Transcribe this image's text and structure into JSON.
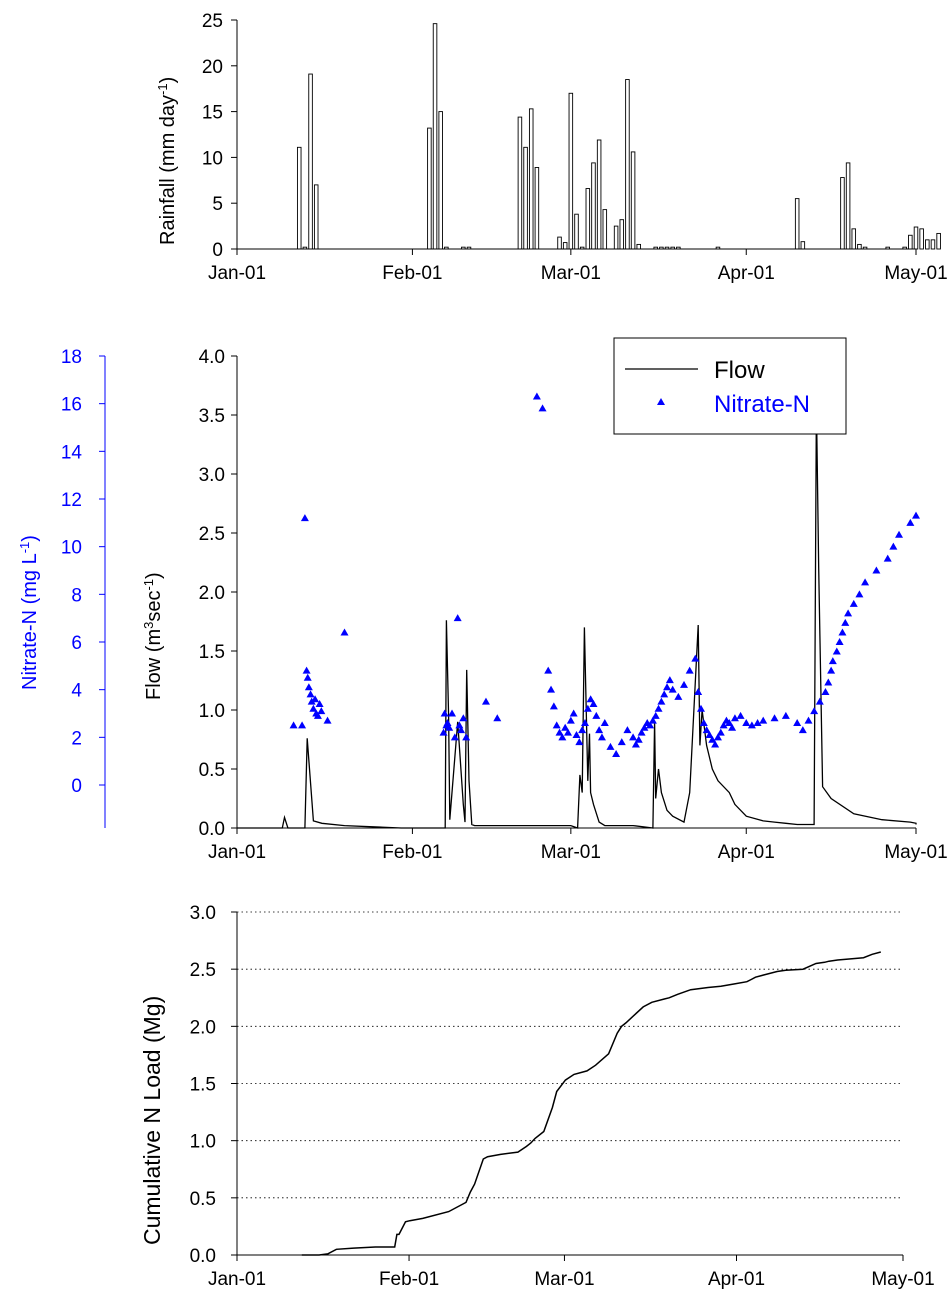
{
  "colors": {
    "black": "#000000",
    "blue": "#0000ff",
    "gray_bar_fill": "#ffffff",
    "grid": "#000000"
  },
  "chart_data": [
    {
      "type": "bar",
      "ylabel": "Rainfall (mm day",
      "ylabel_sup": "-1",
      "ylabel_close": ")",
      "ylim": [
        0,
        25
      ],
      "yticks": [
        "0",
        "5",
        "10",
        "15",
        "20",
        "25"
      ],
      "xlim": [
        "Jan-01",
        "May-01"
      ],
      "xticks": [
        "Jan-01",
        "Feb-01",
        "Mar-01",
        "Apr-01",
        "May-01"
      ],
      "x_day_of_year": [
        12,
        13,
        14,
        15,
        35,
        36,
        37,
        38,
        41,
        42,
        51,
        52,
        53,
        54,
        58,
        59,
        60,
        61,
        62,
        63,
        64,
        65,
        66,
        68,
        69,
        70,
        71,
        72,
        75,
        76,
        77,
        78,
        79,
        86,
        100,
        101,
        108,
        109,
        110,
        111,
        112,
        116,
        119,
        120,
        121,
        122,
        123,
        124,
        125
      ],
      "values": [
        11.1,
        0.2,
        19.1,
        7.0,
        13.2,
        24.6,
        15.0,
        0.2,
        0.2,
        0.2,
        14.4,
        11.1,
        15.3,
        8.9,
        1.3,
        0.7,
        17.0,
        3.8,
        0.2,
        6.6,
        9.4,
        11.9,
        4.3,
        2.5,
        3.2,
        18.5,
        10.6,
        0.5,
        0.2,
        0.2,
        0.2,
        0.2,
        0.2,
        0.2,
        5.5,
        0.8,
        7.8,
        9.4,
        2.2,
        0.5,
        0.2,
        0.2,
        0.2,
        1.5,
        2.4,
        2.2,
        1.0,
        1.0,
        1.7
      ]
    },
    {
      "type": "line",
      "xlim": [
        "Jan-01",
        "May-01"
      ],
      "xticks": [
        "Jan-01",
        "Feb-01",
        "Mar-01",
        "Apr-01",
        "May-01"
      ],
      "ylabel": "Flow (m",
      "ylabel_sup1": "3",
      "ylabel_mid": "sec",
      "ylabel_sup2": "-1",
      "ylabel_close": ")",
      "ylim": [
        0,
        4
      ],
      "yticks": [
        "0.0",
        "0.5",
        "1.0",
        "1.5",
        "2.0",
        "2.5",
        "3.0",
        "3.5",
        "4.0"
      ],
      "y2label": "Nitrate-N (mg L",
      "y2label_sup": "-1",
      "y2label_close": ")",
      "y2ticks": [
        "0",
        "2",
        "4",
        "6",
        "8",
        "10",
        "12",
        "14",
        "16",
        "18"
      ],
      "legend": [
        "Flow",
        "Nitrate-N"
      ],
      "series": [
        {
          "name": "Flow",
          "axis": "left",
          "x_day_of_year": [
            1,
            9,
            9.4,
            10,
            13,
            13.4,
            14.5,
            16,
            20,
            25,
            30,
            35,
            37.8,
            38,
            38.4,
            38.6,
            40,
            41,
            41.3,
            41.6,
            42,
            42.5,
            43,
            45,
            50,
            55,
            60,
            61.2,
            61.6,
            62,
            62.4,
            63,
            63.3,
            63.5,
            64,
            65,
            66,
            67,
            68,
            71,
            74.5,
            74.8,
            75,
            75.5,
            76,
            77,
            78,
            80,
            81,
            82.5,
            82.8,
            83.2,
            84,
            85,
            86,
            88,
            89,
            91,
            94,
            96,
            98,
            100,
            102,
            103,
            103.4,
            103.8,
            104.5,
            106,
            110,
            115,
            120,
            121.5,
            121.8,
            122.2,
            123,
            125,
            127
          ],
          "values": [
            0.0,
            0.0,
            0.09,
            0.0,
            0.0,
            0.76,
            0.06,
            0.04,
            0.02,
            0.01,
            0.0,
            0.0,
            0.0,
            1.76,
            0.95,
            0.07,
            0.9,
            0.2,
            0.05,
            1.34,
            0.4,
            0.03,
            0.02,
            0.02,
            0.02,
            0.02,
            0.02,
            0.0,
            0.45,
            0.3,
            1.7,
            0.4,
            0.8,
            0.3,
            0.2,
            0.05,
            0.02,
            0.02,
            0.02,
            0.02,
            0.0,
            0.9,
            0.25,
            0.5,
            0.3,
            0.15,
            0.1,
            0.05,
            0.3,
            1.72,
            0.7,
            1.0,
            0.7,
            0.5,
            0.4,
            0.3,
            0.2,
            0.1,
            0.06,
            0.05,
            0.04,
            0.03,
            0.03,
            0.03,
            3.6,
            2.2,
            0.35,
            0.25,
            0.12,
            0.07,
            0.05,
            0.04,
            0.04,
            0.04,
            0.03,
            0.03,
            0.03
          ]
        },
        {
          "name": "Nitrate-N",
          "axis": "right",
          "x_day_of_year": [
            11,
            12.5,
            13,
            13.3,
            13.5,
            13.7,
            14,
            14.2,
            14.5,
            14.8,
            15,
            15.3,
            15.6,
            15.9,
            17,
            20,
            37.5,
            37.7,
            38,
            38.2,
            38.5,
            39,
            39.5,
            40,
            40.3,
            40.6,
            41,
            41.5,
            45,
            47,
            54,
            55,
            56,
            56.5,
            57,
            57.5,
            58,
            58.5,
            59,
            59.5,
            60,
            60.5,
            61,
            61.5,
            62,
            62.5,
            63,
            63.5,
            64,
            64.5,
            65,
            65.5,
            66,
            67,
            68,
            69,
            70,
            71,
            71.5,
            72,
            72.5,
            73,
            73.5,
            74,
            74.5,
            75,
            75.5,
            76,
            76.5,
            77,
            77.5,
            78,
            79,
            80,
            81,
            82,
            82.5,
            83,
            83.5,
            84,
            84.5,
            85,
            85.5,
            86,
            86.5,
            87,
            87.5,
            88,
            88.5,
            89,
            90,
            91,
            92,
            93,
            94,
            96,
            98,
            100,
            101,
            102,
            103,
            104,
            105,
            105.5,
            106,
            106.3,
            107,
            107.5,
            108,
            108.5,
            109,
            110,
            111,
            112,
            114,
            116,
            117,
            118,
            120,
            121,
            122,
            123,
            124,
            125,
            126,
            127,
            128,
            129,
            130
          ],
          "values": [
            2.5,
            2.5,
            11.2,
            4.8,
            4.5,
            4.1,
            3.8,
            3.5,
            3.2,
            3.6,
            3.0,
            2.9,
            3.4,
            3.1,
            2.7,
            6.4,
            2.2,
            3.0,
            2.5,
            2.6,
            2.4,
            3.0,
            2.0,
            7.0,
            2.5,
            2.3,
            2.8,
            2.0,
            3.5,
            2.8,
            16.3,
            15.8,
            4.8,
            4.0,
            3.3,
            2.5,
            2.2,
            2.0,
            2.4,
            2.2,
            2.7,
            3.0,
            2.1,
            1.8,
            2.3,
            2.6,
            3.2,
            3.6,
            3.4,
            2.9,
            2.3,
            2.0,
            2.6,
            1.6,
            1.3,
            1.8,
            2.3,
            2.0,
            1.7,
            1.9,
            2.2,
            2.4,
            2.6,
            2.5,
            2.7,
            2.9,
            3.2,
            3.5,
            3.8,
            4.1,
            4.4,
            4.0,
            3.7,
            4.2,
            4.8,
            5.3,
            3.9,
            3.2,
            2.6,
            2.3,
            2.1,
            1.9,
            1.7,
            2.0,
            2.2,
            2.5,
            2.7,
            2.6,
            2.4,
            2.8,
            2.9,
            2.6,
            2.5,
            2.6,
            2.7,
            2.8,
            2.9,
            2.6,
            2.3,
            2.7,
            3.1,
            3.5,
            3.9,
            4.3,
            4.8,
            5.2,
            5.6,
            6.0,
            6.4,
            6.8,
            7.2,
            7.6,
            8.0,
            8.5,
            9.0,
            9.5,
            10.0,
            10.5,
            11.0,
            11.3,
            11.5,
            12.0,
            7.0,
            5.0,
            3.8,
            3.3,
            2.9,
            2.4,
            2.0,
            1.6,
            1.2
          ]
        }
      ]
    },
    {
      "type": "line",
      "ylabel": "Cumulative N Load (Mg)",
      "ylim": [
        0,
        3
      ],
      "yticks": [
        "0.0",
        "0.5",
        "1.0",
        "1.5",
        "2.0",
        "2.5",
        "3.0"
      ],
      "xlim": [
        "Jan-01",
        "May-01"
      ],
      "xticks": [
        "Jan-01",
        "Feb-01",
        "Mar-01",
        "Apr-01",
        "May-01"
      ],
      "grid": "horizontal dotted",
      "x_day_of_year": [
        16,
        20,
        22,
        24,
        28,
        33,
        35,
        37.5,
        38,
        38.5,
        40,
        41,
        44,
        50,
        54,
        55,
        56,
        58,
        59,
        62,
        66,
        68,
        69,
        70,
        72,
        74,
        75,
        77,
        79,
        82,
        84,
        87,
        89,
        90,
        91,
        93,
        95,
        97,
        100,
        101,
        103,
        106,
        110,
        113,
        116,
        119,
        120,
        121,
        123,
        126,
        128,
        132,
        135,
        137,
        138,
        140,
        146,
        148,
        150
      ],
      "values": [
        0.0,
        0.0,
        0.01,
        0.05,
        0.06,
        0.07,
        0.07,
        0.07,
        0.18,
        0.18,
        0.29,
        0.3,
        0.32,
        0.38,
        0.46,
        0.55,
        0.62,
        0.84,
        0.86,
        0.88,
        0.9,
        0.95,
        0.98,
        1.02,
        1.08,
        1.29,
        1.43,
        1.53,
        1.58,
        1.61,
        1.66,
        1.76,
        1.94,
        2.0,
        2.03,
        2.1,
        2.17,
        2.21,
        2.24,
        2.25,
        2.28,
        2.32,
        2.34,
        2.35,
        2.37,
        2.39,
        2.41,
        2.43,
        2.45,
        2.48,
        2.49,
        2.5,
        2.55,
        2.56,
        2.57,
        2.58,
        2.6,
        2.63,
        2.65
      ]
    }
  ]
}
